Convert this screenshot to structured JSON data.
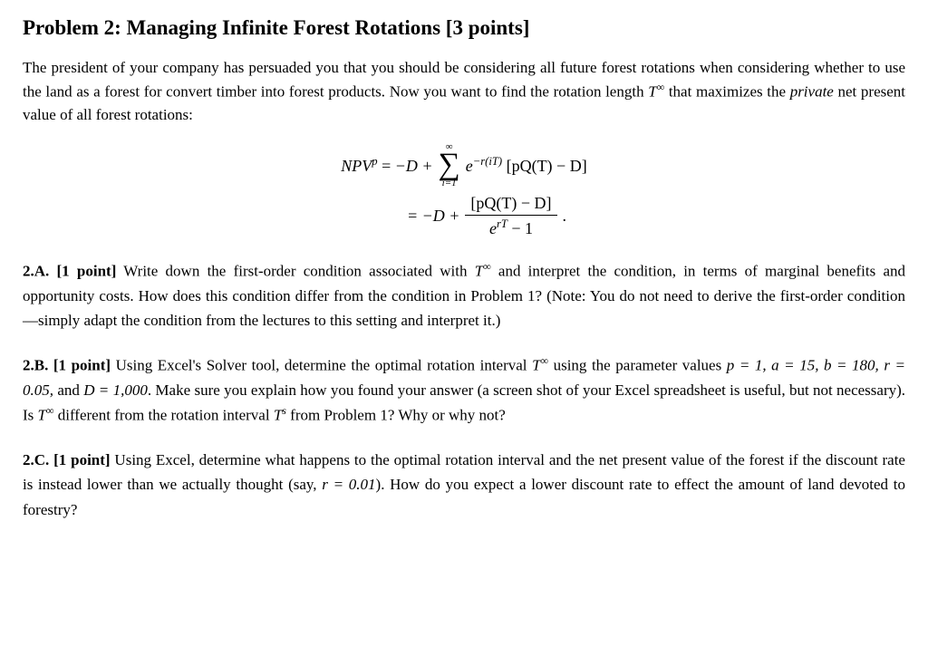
{
  "title": "Problem 2: Managing Infinite Forest Rotations [3 points]",
  "intro_part1": "The president of your company has persuaded you that you should be considering all future forest rotations when considering whether to use the land as a forest for convert timber into forest products. Now you want to find the rotation length ",
  "intro_math1": "T",
  "intro_sup1": "∞",
  "intro_part2": " that maximizes the ",
  "intro_italic": "private",
  "intro_part3": " net present value of all forest rotations:",
  "eq": {
    "lhs": "NPV",
    "lhs_sup": "p",
    "eq_sign": " = ",
    "neg_d": "−D + ",
    "sigma_top": "∞",
    "sigma_bot": "i=1",
    "exp": "e",
    "exp_sup": "−r(iT)",
    "bracket": " [pQ(T) − D]",
    "line2_lhs": "= −D + ",
    "frac_num": "[pQ(T) − D]",
    "frac_den_e": "e",
    "frac_den_sup": "rT",
    "frac_den_rest": " − 1",
    "period": "."
  },
  "partA": {
    "label": "2.A. [1 point]",
    "t1": "   Write down the first-order condition associated with ",
    "m1": "T",
    "s1": "∞",
    "t2": " and interpret the condition, in terms of marginal benefits and opportunity costs. How does this condition differ from the condition in Problem 1? (Note: You do not need to derive the first-order condition—simply adapt the condition from the lectures to this setting and interpret it.)"
  },
  "partB": {
    "label": "2.B. [1 point]",
    "t1": "   Using Excel's Solver tool, determine the optimal rotation interval ",
    "m1": "T",
    "s1": "∞",
    "t2": " using the parameter values ",
    "params": "p = 1, a = 15, b = 180, r = 0.05,",
    "t3": " and ",
    "params2": "D = 1,000",
    "t4": ". Make sure you explain how you found your answer (a screen shot of your Excel spreadsheet is useful, but not necessary). Is ",
    "m2": "T",
    "s2": "∞",
    "t5": " different from the rotation interval ",
    "m3": "T",
    "s3": "s",
    "t6": " from Problem 1? Why or why not?"
  },
  "partC": {
    "label": "2.C. [1 point]",
    "t1": "   Using Excel, determine what happens to the optimal rotation interval and the net present value of the forest if the discount rate is instead lower than we actually thought (say, ",
    "m1": "r = 0.01",
    "t2": "). How do you expect a lower discount rate to effect the amount of land devoted to forestry?"
  }
}
